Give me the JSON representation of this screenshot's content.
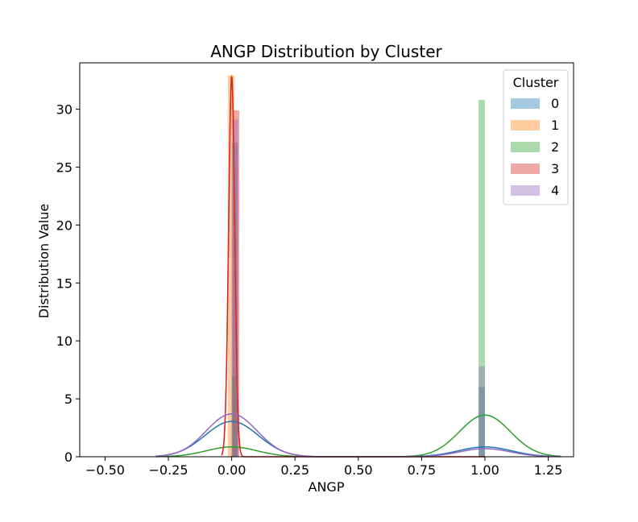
{
  "chart_data": {
    "type": "bar",
    "title": "ANGP Distribution by Cluster",
    "xlabel": "ANGP",
    "ylabel": "Distribution Value",
    "xlim": [
      -0.6,
      1.35
    ],
    "ylim": [
      0,
      34
    ],
    "xticks": [
      -0.5,
      -0.25,
      0.0,
      0.25,
      0.5,
      0.75,
      1.0,
      1.25
    ],
    "xtick_labels": [
      "−0.50",
      "−0.25",
      "0.00",
      "0.25",
      "0.50",
      "0.75",
      "1.00",
      "1.25"
    ],
    "yticks": [
      0,
      5,
      10,
      15,
      20,
      25,
      30
    ],
    "ytick_labels": [
      "0",
      "5",
      "10",
      "15",
      "20",
      "25",
      "30"
    ],
    "legend": {
      "title": "Cluster",
      "position": "top-right"
    },
    "series": [
      {
        "name": "0",
        "color": "#1f77b4",
        "bars": [
          {
            "x0": 0.0,
            "x1": 0.025,
            "height": 27.1
          },
          {
            "x0": 0.975,
            "x1": 1.0,
            "height": 6.0
          }
        ],
        "kde": {
          "mean": 0.0,
          "sd": 0.105,
          "peak": 3.05,
          "right_mean": 1.0,
          "right_peak": 0.85,
          "right_sd": 0.105,
          "range": [
            -0.3,
            1.3
          ]
        }
      },
      {
        "name": "1",
        "color": "#ff7f0e",
        "bars": [
          {
            "x0": -0.015,
            "x1": 0.01,
            "height": 32.9
          }
        ],
        "kde": {
          "mean": 0.0,
          "sd": 0.012,
          "peak": 32.9,
          "range": [
            -0.04,
            0.04
          ]
        }
      },
      {
        "name": "2",
        "color": "#2ca02c",
        "bars": [
          {
            "x0": 0.0,
            "x1": 0.025,
            "height": 7.0
          },
          {
            "x0": 0.975,
            "x1": 1.0,
            "height": 30.8
          }
        ],
        "kde": {
          "mean": 0.0,
          "sd": 0.1,
          "peak": 0.85,
          "right_mean": 1.0,
          "right_peak": 3.6,
          "right_sd": 0.1,
          "range": [
            -0.3,
            1.3
          ]
        }
      },
      {
        "name": "3",
        "color": "#d62728",
        "bars": [
          {
            "x0": 0.005,
            "x1": 0.03,
            "height": 29.9
          }
        ],
        "kde": {
          "mean": 0.0,
          "sd": 0.012,
          "peak": 32.9,
          "range": [
            -0.04,
            1.0
          ]
        }
      },
      {
        "name": "4",
        "color": "#9467bd",
        "bars": [
          {
            "x0": 0.0,
            "x1": 0.025,
            "height": 29.1
          },
          {
            "x0": 0.975,
            "x1": 1.0,
            "height": 7.8
          }
        ],
        "kde": {
          "mean": 0.0,
          "sd": 0.1,
          "peak": 3.7,
          "right_mean": 1.0,
          "right_peak": 0.7,
          "right_sd": 0.1,
          "range": [
            -0.3,
            1.3
          ]
        }
      }
    ]
  }
}
